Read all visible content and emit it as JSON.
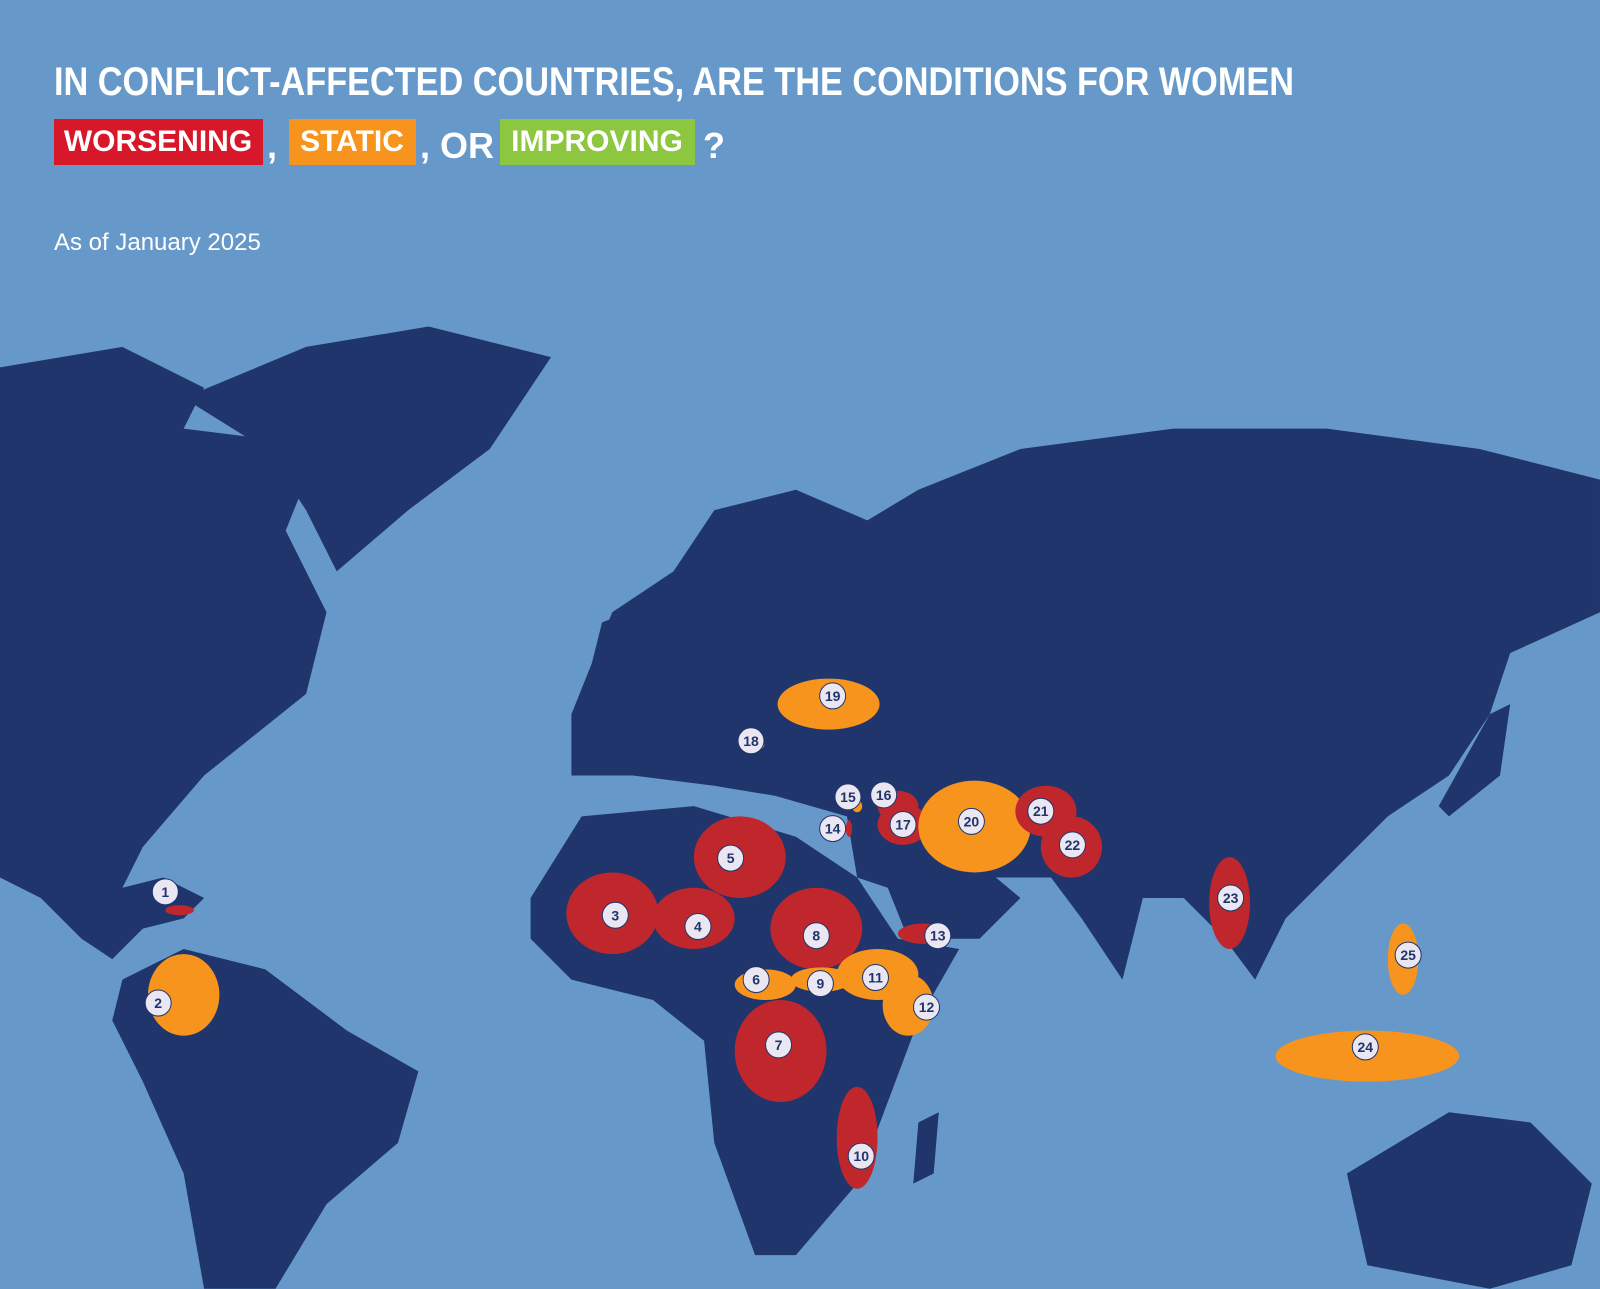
{
  "title": "IN CONFLICT-AFFECTED COUNTRIES, ARE THE CONDITIONS FOR WOMEN",
  "question": {
    "worsening": "WORSENING",
    "sep1": ",",
    "static": "STATIC",
    "sep2": ", OR",
    "improving": "IMPROVING",
    "end": "?"
  },
  "colors": {
    "worsening": "#d7182a",
    "static": "#f7941d",
    "improving": "#8dc63f",
    "sea": "#6699c9",
    "land": "#1f356b"
  },
  "subtitle": "As of January 2025",
  "markers": [
    {
      "label": "1",
      "color": "#c0272d"
    },
    {
      "label": "2",
      "color": "#f7941d"
    },
    {
      "label": "3",
      "color": "#c0272d"
    },
    {
      "label": "4",
      "color": "#c0272d"
    },
    {
      "label": "5",
      "color": "#c0272d"
    },
    {
      "label": "6",
      "color": "#f7941d"
    },
    {
      "label": "7",
      "color": "#c0272d"
    },
    {
      "label": "8",
      "color": "#c0272d"
    },
    {
      "label": "9",
      "color": "#f7941d"
    },
    {
      "label": "10",
      "color": "#c0272d"
    },
    {
      "label": "11",
      "color": "#f7941d"
    },
    {
      "label": "12",
      "color": "#f7941d"
    },
    {
      "label": "13",
      "color": "#c0272d"
    },
    {
      "label": "14",
      "color": "#c0272d"
    },
    {
      "label": "15",
      "color": "#f7941d"
    },
    {
      "label": "16",
      "color": "#c0272d"
    },
    {
      "label": "17",
      "color": "#c0272d"
    },
    {
      "label": "18",
      "color": "#f7941d"
    },
    {
      "label": "19",
      "color": "#f7941d"
    },
    {
      "label": "20",
      "color": "#f7941d"
    },
    {
      "label": "21",
      "color": "#c0272d"
    },
    {
      "label": "22",
      "color": "#c0272d"
    },
    {
      "label": "23",
      "color": "#c0272d"
    },
    {
      "label": "24",
      "color": "#f7941d"
    },
    {
      "label": "25",
      "color": "#f7941d"
    }
  ]
}
